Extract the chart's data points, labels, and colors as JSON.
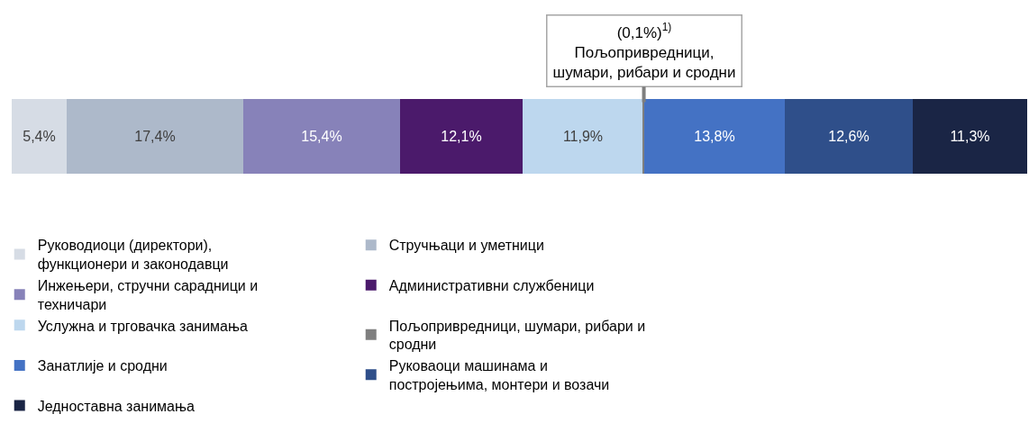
{
  "chart_data": {
    "type": "bar",
    "orientation": "horizontal",
    "stacked": true,
    "categories": [
      null
    ],
    "xlim": [
      0,
      100
    ],
    "legend": "bottom",
    "series": [
      {
        "name": "Руководиоци (директори), функционери и законодавци",
        "color": "#d6dce5",
        "values": [
          5.4
        ],
        "value_labels": [
          "5,4%"
        ]
      },
      {
        "name": "Стручњаци и уметници",
        "color": "#adb9ca",
        "values": [
          17.4
        ],
        "value_labels": [
          "17,4%"
        ]
      },
      {
        "name": "Инжењери, стручни сарадници и техничари",
        "color": "#8782b9",
        "values": [
          15.4
        ],
        "value_labels": [
          "15,4%"
        ]
      },
      {
        "name": "Административни службеници",
        "color": "#4b1a6b",
        "values": [
          12.1
        ],
        "value_labels": [
          "12,1%"
        ]
      },
      {
        "name": "Услужна и трговачка занимања",
        "color": "#bdd7ee",
        "values": [
          11.9
        ],
        "value_labels": [
          "11,9%"
        ]
      },
      {
        "name": "Пољопривредници, шумари, рибари и сродни",
        "color": "#7f7f7f",
        "values": [
          0.1
        ],
        "value_labels": [
          null
        ]
      },
      {
        "name": "Занатлије и сродни",
        "color": "#4472c4",
        "values": [
          13.8
        ],
        "value_labels": [
          "13,8%"
        ]
      },
      {
        "name": "Руковаоци машинама и постројењима, монтери и возачи",
        "color": "#2f4f8a",
        "values": [
          12.6
        ],
        "value_labels": [
          "12,6%"
        ]
      },
      {
        "name": "Једноставна занимања",
        "color": "#1a2545",
        "values": [
          11.3
        ],
        "value_labels": [
          "11,3%"
        ]
      }
    ],
    "annotations": [
      {
        "text": "(0,1%)$^{1)}$\nПољопривредници,\nшумари, рибари и сродни",
        "x": 62.25
      }
    ]
  }
}
